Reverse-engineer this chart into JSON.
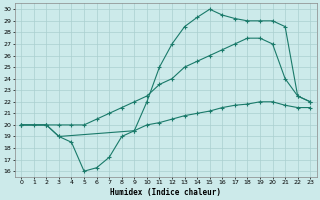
{
  "xlabel": "Humidex (Indice chaleur)",
  "background_color": "#cceaea",
  "grid_color": "#aacfcf",
  "line_color": "#1a7a6a",
  "xlim": [
    -0.5,
    23.5
  ],
  "ylim": [
    15.5,
    30.5
  ],
  "xticks": [
    0,
    1,
    2,
    3,
    4,
    5,
    6,
    7,
    8,
    9,
    10,
    11,
    12,
    13,
    14,
    15,
    16,
    17,
    18,
    19,
    20,
    21,
    22,
    23
  ],
  "yticks": [
    16,
    17,
    18,
    19,
    20,
    21,
    22,
    23,
    24,
    25,
    26,
    27,
    28,
    29,
    30
  ],
  "line1_x": [
    0,
    1,
    2,
    3,
    4,
    5,
    6,
    7,
    8,
    9,
    10,
    11,
    12,
    13,
    14,
    15,
    16,
    17,
    18,
    19,
    20,
    21,
    22,
    23
  ],
  "line1_y": [
    20,
    20,
    20,
    19,
    18.5,
    16.0,
    16.3,
    17.2,
    19.0,
    19.5,
    20.0,
    20.2,
    20.5,
    20.8,
    21.0,
    21.2,
    21.5,
    21.7,
    21.8,
    22.0,
    22.0,
    21.7,
    21.5,
    21.5
  ],
  "line2_x": [
    0,
    2,
    3,
    4,
    5,
    6,
    7,
    8,
    9,
    10,
    11,
    12,
    13,
    14,
    15,
    16,
    17,
    18,
    19,
    20,
    21,
    22,
    23
  ],
  "line2_y": [
    20,
    20,
    20,
    20,
    20,
    20.5,
    21.0,
    21.5,
    22.0,
    22.5,
    23.5,
    24.0,
    25.0,
    25.5,
    26.0,
    26.5,
    27.0,
    27.5,
    27.5,
    27.0,
    24.0,
    22.5,
    22.0
  ],
  "line3_x": [
    0,
    2,
    3,
    9,
    10,
    11,
    12,
    13,
    14,
    15,
    16,
    17,
    18,
    19,
    20,
    21,
    22,
    23
  ],
  "line3_y": [
    20,
    20,
    19.0,
    19.5,
    22.0,
    25.0,
    27.0,
    28.5,
    29.3,
    30.0,
    29.5,
    29.2,
    29.0,
    29.0,
    29.0,
    28.5,
    22.5,
    22.0
  ]
}
